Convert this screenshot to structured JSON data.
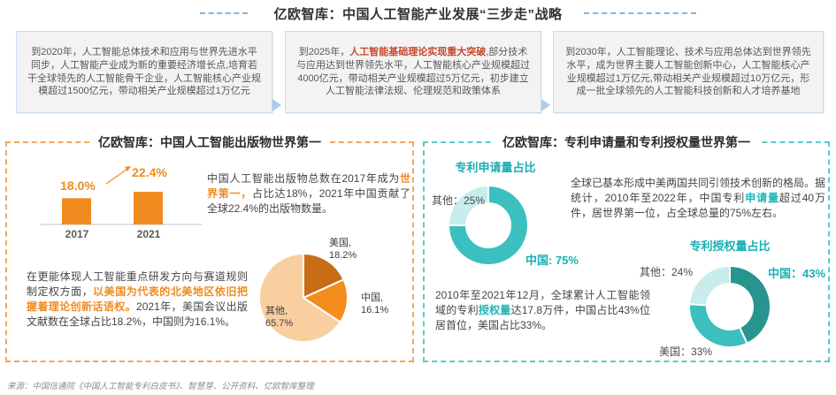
{
  "top": {
    "title": "亿欧智库：中国人工智能产业发展“三步走”战略",
    "boxes": [
      {
        "pre": "到2020年，人工智能总体技术和应用与世界先进水平同步，人工智能产业成为新的重要经济增长点,培育若干全球领先的人工智能骨干企业，人工智能核心产业规模超过1500亿元，带动相关产业规模超过1万亿元",
        "highlight": "",
        "post": ""
      },
      {
        "pre": "到2025年，",
        "highlight": "人工智能基础理论实现重大突破",
        "post": ",部分技术与应用达到世界领先水平，人工智能核心产业规模超过4000亿元，带动相关产业规模超过5万亿元，初步建立人工智能法律法规、伦理规范和政策体系"
      },
      {
        "pre": "到2030年，人工智能理论、技术与应用总体达到世界领先水平，成为世界主要人工智能创新中心，人工智能核心产业规模超过1万亿元,带动相关产业规模超过10万亿元，形成一批全球领先的人工智能科技创新和人才培养基地",
        "highlight": "",
        "post": ""
      }
    ]
  },
  "left_panel": {
    "title": "亿欧智库：中国人工智能出版物世界第一",
    "para1": {
      "pre": "中国人工智能出版物总数在2017年成为",
      "highlight": "世界第一，",
      "post": "占比达18%，2021年中国贡献了全球22.4%的出版物数量。"
    },
    "para2": {
      "pre": "在更能体现人工智能重点研发方向与赛道规则制定权方面，",
      "highlight": "以美国为代表的北美地区依旧把握着理论创新话语权。",
      "post": "2021年，美国会议出版文献数在全球占比18.2%，中国则为16.1%。"
    }
  },
  "right_panel": {
    "title": "亿欧智库：专利申请量和专利授权量世界第一",
    "para1": {
      "pre": "全球已基本形成中美两国共同引领技术创新的格局。据统计，2010年至2022年，中国专利",
      "highlight": "申请量",
      "post": "超过40万件，居世界第一位，占全球总量的75%左右。"
    },
    "para2": {
      "pre": "2010年至2021年12月，全球累计人工智能领域的专利",
      "highlight": "授权量",
      "post": "达17.8万件，中国占比43%位居首位，美国占比33%。"
    }
  },
  "footer": {
    "source": "来源：中国信通院《中国人工智能专利白皮书》、智慧芽、公开资料、亿欧智库整理"
  },
  "chart_data": [
    {
      "type": "bar",
      "categories": [
        "2017",
        "2021"
      ],
      "values": [
        18.0,
        22.4
      ],
      "data_labels": [
        "18.0%",
        "22.4%"
      ],
      "bar_color": "#F08C1F",
      "grid": false,
      "annotation": "increase-arrow"
    },
    {
      "type": "pie",
      "start_angle": 0,
      "clockwise": true,
      "slices": [
        {
          "name": "美国",
          "value": 18.2,
          "color": "#C86C15",
          "label": "美国,",
          "value_label": "18.2%"
        },
        {
          "name": "中国",
          "value": 16.1,
          "color": "#F28D1E",
          "label": "中国,",
          "value_label": "16.1%"
        },
        {
          "name": "其他",
          "value": 65.7,
          "color": "#F9CFA0",
          "label": "其他,",
          "value_label": "65.7%"
        }
      ]
    },
    {
      "type": "donut",
      "title": "专利申请量占比",
      "start_angle": 0,
      "clockwise": true,
      "slices": [
        {
          "name": "中国",
          "value": 75,
          "color": "#3BBFBF",
          "label": "中国: 75%"
        },
        {
          "name": "其他",
          "value": 25,
          "color": "#C9ECEC",
          "label": "其他：25%"
        }
      ]
    },
    {
      "type": "donut",
      "title": "专利授权量占比",
      "start_angle": 0,
      "clockwise": true,
      "slices": [
        {
          "name": "中国",
          "value": 43,
          "color": "#27958E",
          "label": "中国：43%"
        },
        {
          "name": "美国",
          "value": 33,
          "color": "#3BBFBF",
          "label": "美国：33%"
        },
        {
          "name": "其他",
          "value": 24,
          "color": "#C9ECEC",
          "label": "其他：24%"
        }
      ]
    }
  ]
}
